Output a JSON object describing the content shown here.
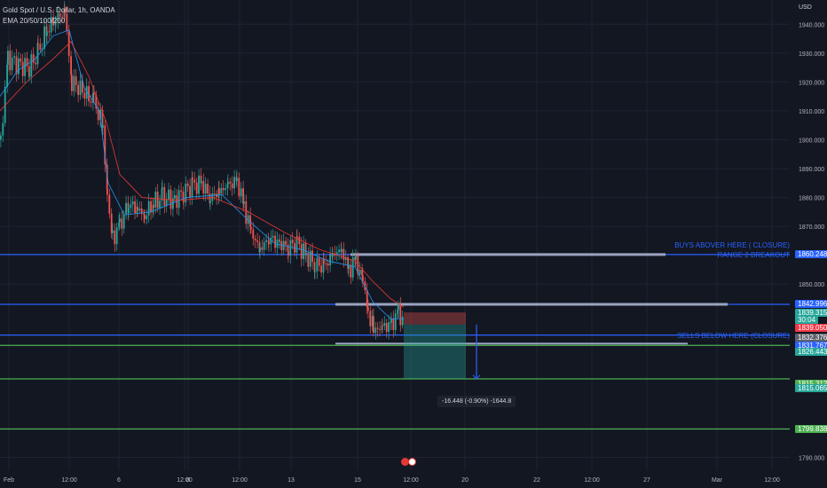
{
  "header": {
    "symbol": "Gold Spot / U.S. Dollar, 1h, OANDA",
    "indicator": "EMA 20/50/100/200"
  },
  "currency": "USD",
  "colors": {
    "background": "#131722",
    "grid": "#1f2330",
    "up": "#26a69a",
    "down": "#ef5350",
    "blue_line": "#2962ff",
    "green_line": "#4caf50",
    "ema_fast": "#2196f3",
    "ema_slow": "#e53935"
  },
  "price_axis": {
    "ticks": [
      "1940.000",
      "1930.000",
      "1920.000",
      "1910.000",
      "1900.000",
      "1890.000",
      "1880.000",
      "1870.000",
      "1850.000",
      "1800.000",
      "1790.000"
    ]
  },
  "time_axis": {
    "ticks": [
      "Feb",
      "12:00",
      "6",
      "12:00",
      "8",
      "12:00",
      "13",
      "15",
      "12:00",
      "20",
      "22",
      "12:00",
      "27",
      "Mar",
      "12:00"
    ]
  },
  "levels": [
    {
      "price": "1860.248",
      "style": "blue"
    },
    {
      "price": "1842.996",
      "style": "blue"
    },
    {
      "price": "1839.315",
      "style": "green_box"
    },
    {
      "price": "30:04",
      "style": "green_box"
    },
    {
      "price": "1839.050",
      "style": "red_box"
    },
    {
      "price": "1832.376",
      "style": "blue"
    },
    {
      "price": "1831.767",
      "style": "blue"
    },
    {
      "price": "1826.443",
      "style": "green_box"
    },
    {
      "price": "1815.312",
      "style": "green_box"
    },
    {
      "price": "1815.065",
      "style": "green_box"
    },
    {
      "price": "1799.838",
      "style": "green_box"
    }
  ],
  "annotations": {
    "buys_line1": "BUYS ABOVER HERE ( CLOSURE)",
    "buys_line2": "RANGE 2 BREAKOUT",
    "sells": "SELLS BELOW HERE (CLOSURE)"
  },
  "measurement": "-16.448 (-0.90%) -1644.8"
}
